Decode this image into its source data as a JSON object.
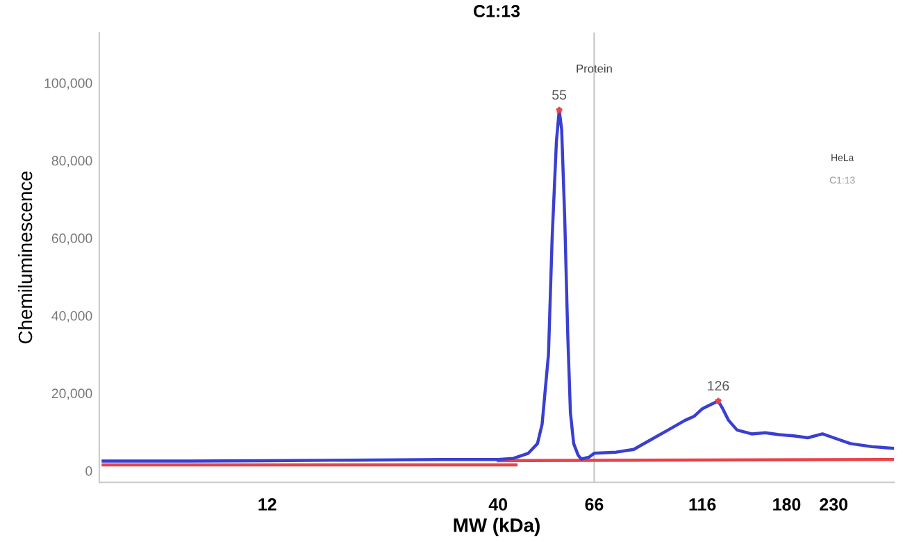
{
  "chart_data": {
    "type": "line",
    "title": "C1:13",
    "xlabel": "MW (kDa)",
    "ylabel": "Chemiluminescence",
    "log": "x",
    "xlim": [
      5,
      315
    ],
    "xticks": [
      12,
      40,
      66,
      116,
      180,
      230
    ],
    "ylim": [
      -3000,
      113000
    ],
    "yticks": [
      {
        "value": 0,
        "label": "0"
      },
      {
        "value": 20000,
        "label": "20,000"
      },
      {
        "value": 40000,
        "label": "40,000"
      },
      {
        "value": 60000,
        "label": "60,000"
      },
      {
        "value": 80000,
        "label": "80,000"
      },
      {
        "value": 100000,
        "label": "100,000"
      }
    ],
    "grid": false,
    "marker": "none",
    "line_style": "solid",
    "series": [
      {
        "color": "#e8424a",
        "x": [
          5.1,
          43.9
        ],
        "values": [
          1500,
          1500
        ]
      },
      {
        "color": "#e8424a",
        "x": [
          40,
          314
        ],
        "values": [
          2600,
          2900
        ]
      },
      {
        "color": "#3a3fd0",
        "x": [
          5.1,
          8.0,
          12,
          16.7,
          24,
          29.9,
          40,
          43.3,
          46.8,
          49.1,
          50.3,
          52,
          53,
          54.2,
          55,
          55.7,
          56.6,
          57.5,
          58.3,
          59.3,
          60.7,
          61.7,
          64.2,
          66,
          74.1,
          81.1,
          88.7,
          97,
          106,
          111,
          116,
          126,
          129,
          133,
          139,
          150,
          161,
          173,
          186.8,
          201,
          217,
          230,
          251,
          281,
          314
        ],
        "values": [
          2500,
          2500,
          2600,
          2700,
          2800,
          2900,
          2900,
          3200,
          4500,
          7000,
          12000,
          30000,
          60000,
          85000,
          93000,
          88000,
          65000,
          35000,
          15000,
          7000,
          4000,
          3000,
          3500,
          4500,
          4800,
          5500,
          8000,
          10500,
          13000,
          14000,
          16000,
          18000,
          16000,
          13000,
          10500,
          9500,
          9800,
          9300,
          9000,
          8500,
          9500,
          8500,
          7000,
          6200,
          5800
        ]
      }
    ],
    "ref_lines": [
      {
        "axis": "x",
        "value": 66,
        "label": "Protein",
        "color": "#c8c8c8"
      }
    ],
    "annotations": [
      {
        "text": "55",
        "x": 55,
        "y": 93000
      },
      {
        "text": "126",
        "x": 126,
        "y": 18000
      },
      "HeLa",
      "C1:13"
    ]
  }
}
